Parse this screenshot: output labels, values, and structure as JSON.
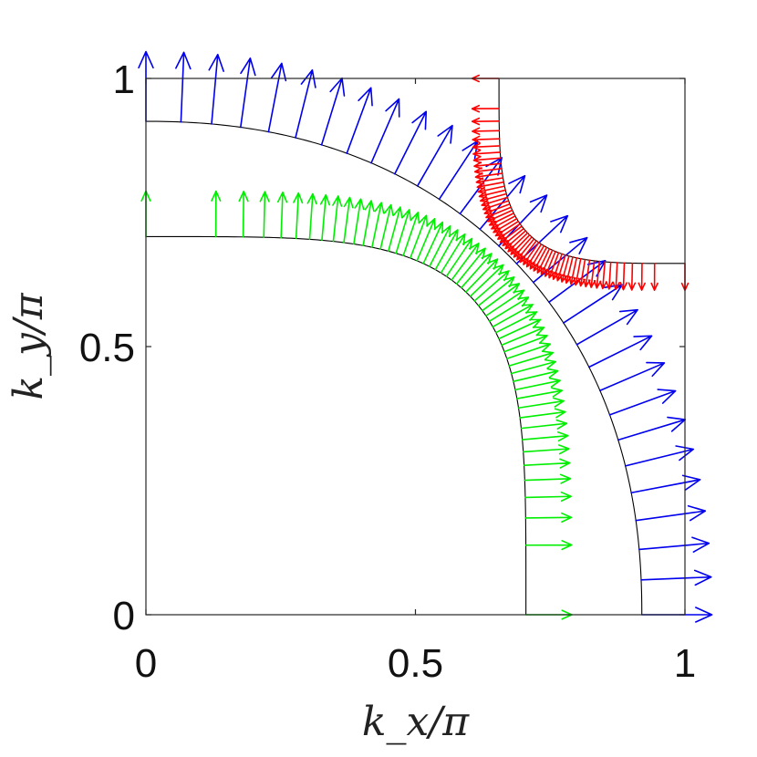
{
  "chart_data": {
    "type": "quiver",
    "xlabel": "k_x/π",
    "ylabel": "k_y/π",
    "xlim": [
      0,
      1
    ],
    "ylim": [
      0,
      1
    ],
    "x_ticks": [
      "0",
      "0.5",
      "1"
    ],
    "y_ticks": [
      "0",
      "0.5",
      "1"
    ],
    "grid": false,
    "contours": [
      {
        "name": "inner",
        "kx0": 0.705,
        "ky0": 0.705,
        "p": 4.2,
        "color": "#000000"
      },
      {
        "name": "outer",
        "kx0": 0.92,
        "ky0": 0.92,
        "p": 2.2,
        "color": "#000000"
      },
      {
        "name": "corner",
        "cx": 1.0,
        "cy": 1.0,
        "r": 0.345,
        "p": 4.0,
        "color": "#000000"
      }
    ],
    "series": [
      {
        "color": "#00ee00",
        "contour": "inner",
        "count": 56,
        "length": 0.085,
        "head": 0.018
      },
      {
        "color": "#0000ee",
        "contour": "outer",
        "count": 30,
        "length": 0.13,
        "head": 0.03
      },
      {
        "color": "#ff0000",
        "contour": "corner",
        "count": 60,
        "length": 0.05,
        "head": 0.013
      }
    ]
  }
}
